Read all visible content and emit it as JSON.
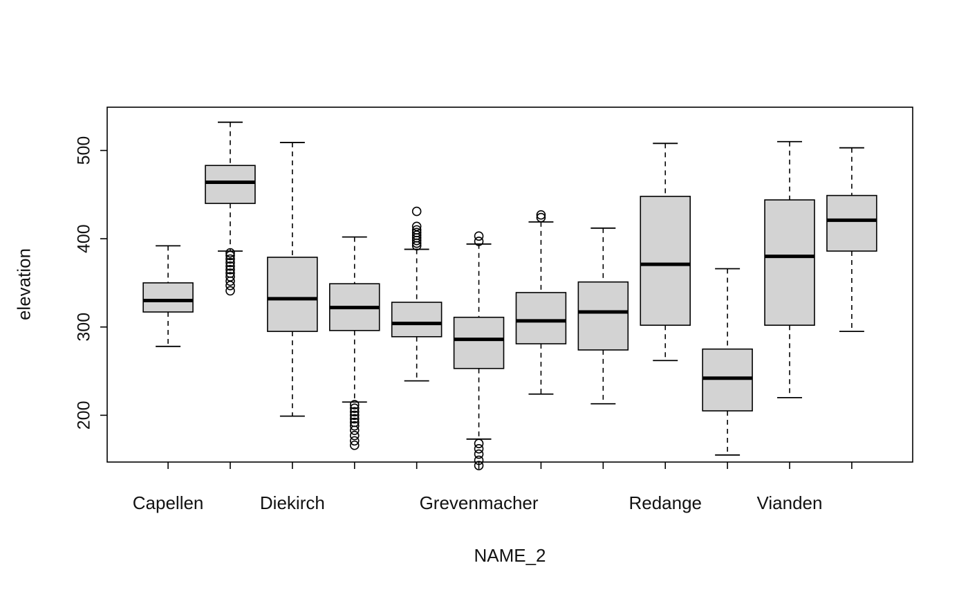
{
  "chart_data": {
    "type": "boxplot",
    "title": "",
    "xlabel": "NAME_2",
    "ylabel": "elevation",
    "grid": false,
    "legend": false,
    "y_ticks": [
      200,
      300,
      400,
      500
    ],
    "ylim": [
      147,
      549
    ],
    "x_positions": 12,
    "colors": {
      "box_fill": "#d3d3d3",
      "stroke": "#000000",
      "background": "#ffffff"
    },
    "boxes": [
      {
        "label": "Capellen",
        "min": 278,
        "q1": 317,
        "median": 330,
        "q3": 350,
        "max": 392,
        "outliers": []
      },
      {
        "label": "",
        "min": 386,
        "q1": 440,
        "median": 464,
        "q3": 483,
        "max": 532,
        "outliers": [
          384,
          381,
          377,
          373,
          369,
          365,
          361,
          357,
          352,
          347,
          341
        ]
      },
      {
        "label": "Diekirch",
        "min": 199,
        "q1": 295,
        "median": 332,
        "q3": 379,
        "max": 509,
        "outliers": []
      },
      {
        "label": "",
        "min": 215,
        "q1": 296,
        "median": 322,
        "q3": 349,
        "max": 402,
        "outliers": [
          212,
          208,
          204,
          200,
          196,
          192,
          188,
          183,
          177,
          171,
          166
        ]
      },
      {
        "label": "",
        "min": 239,
        "q1": 289,
        "median": 304,
        "q3": 328,
        "max": 388,
        "outliers": [
          392,
          395,
          398,
          401,
          404,
          407,
          410,
          414,
          431
        ]
      },
      {
        "label": "Grevenmacher",
        "min": 173,
        "q1": 253,
        "median": 286,
        "q3": 311,
        "max": 394,
        "outliers": [
          403,
          397,
          168,
          162,
          156,
          149,
          143
        ]
      },
      {
        "label": "",
        "min": 224,
        "q1": 281,
        "median": 307,
        "q3": 339,
        "max": 419,
        "outliers": [
          427,
          424
        ]
      },
      {
        "label": "",
        "min": 213,
        "q1": 274,
        "median": 317,
        "q3": 351,
        "max": 412,
        "outliers": []
      },
      {
        "label": "Redange",
        "min": 262,
        "q1": 302,
        "median": 371,
        "q3": 448,
        "max": 508,
        "outliers": []
      },
      {
        "label": "",
        "min": 155,
        "q1": 205,
        "median": 242,
        "q3": 275,
        "max": 366,
        "outliers": []
      },
      {
        "label": "Vianden",
        "min": 220,
        "q1": 302,
        "median": 380,
        "q3": 444,
        "max": 510,
        "outliers": []
      },
      {
        "label": "",
        "min": 295,
        "q1": 386,
        "median": 421,
        "q3": 449,
        "max": 503,
        "outliers": []
      }
    ]
  }
}
